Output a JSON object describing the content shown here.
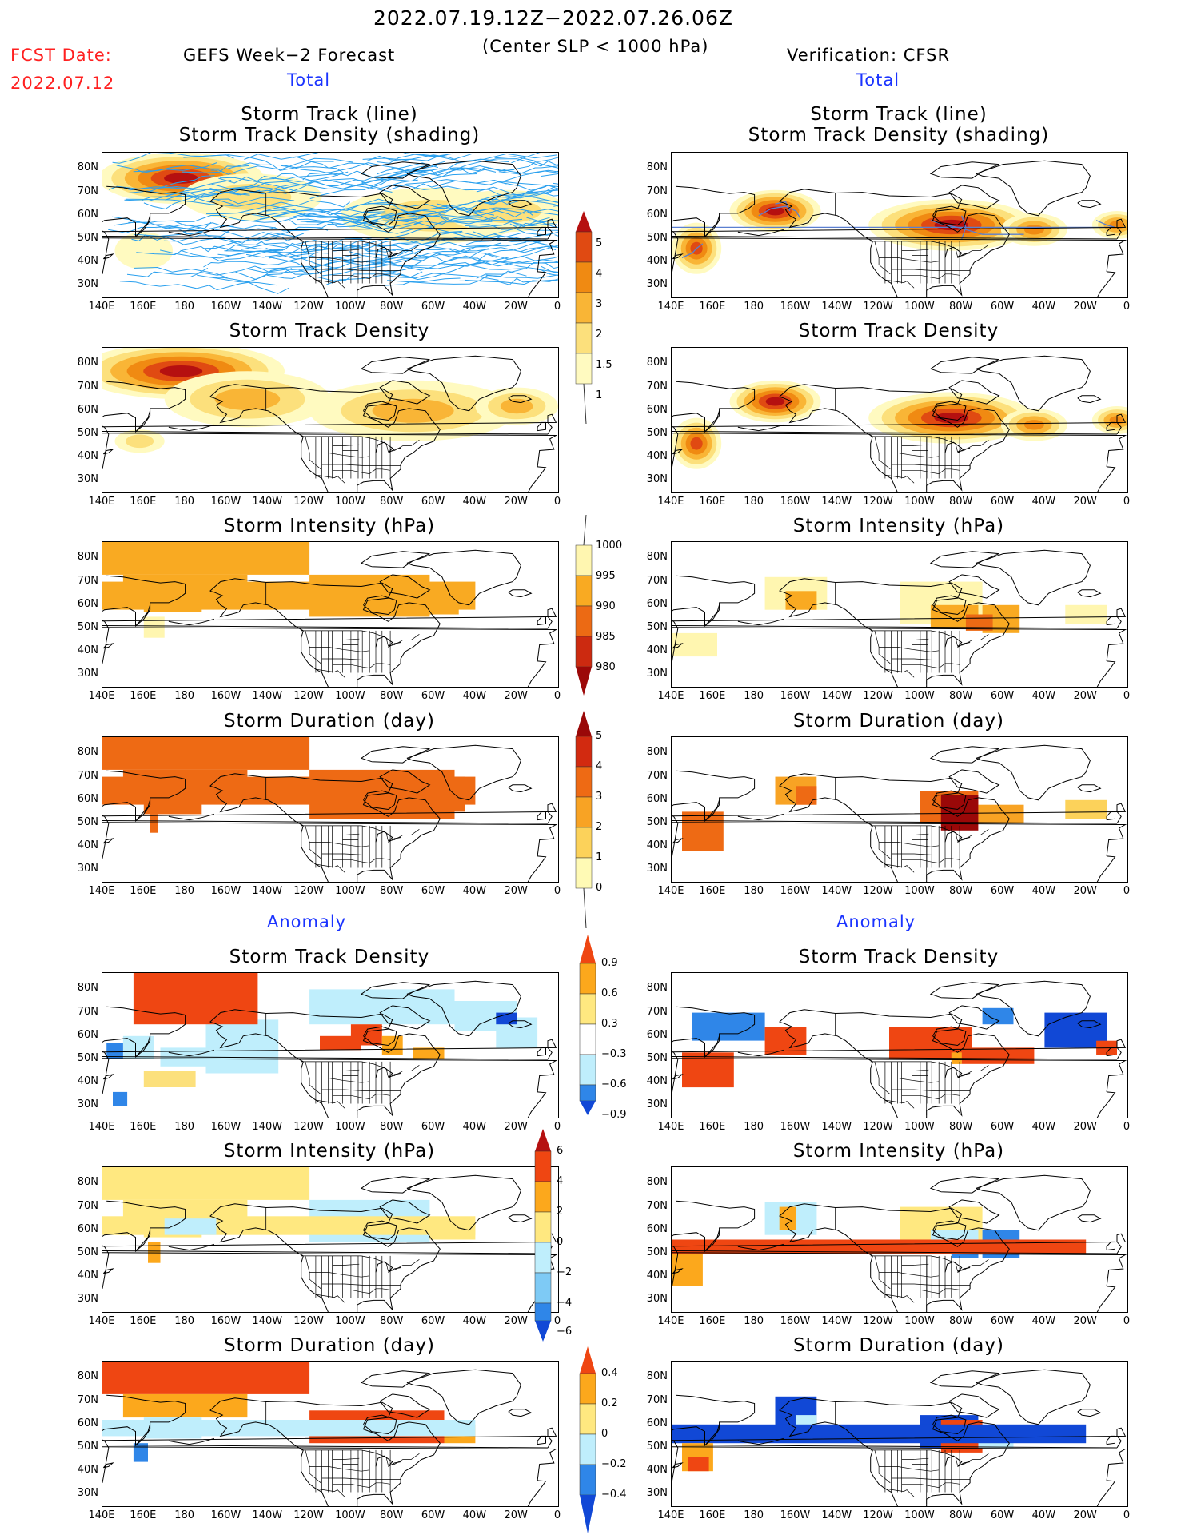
{
  "header": {
    "date_range": "2022.07.19.12Z−2022.07.26.06Z",
    "center_slp": "(Center SLP < 1000 hPa)",
    "fcst_label": "FCST Date:",
    "fcst_date": "2022.07.12",
    "left_title": "GEFS Week−2 Forecast",
    "right_title": "Verification: CFSR",
    "total_label": "Total",
    "anomaly_label": "Anomaly"
  },
  "panel_titles": {
    "track_line": "Storm Track (line)",
    "track_density_shading": "Storm Track Density (shading)",
    "track_density": "Storm Track Density",
    "intensity": "Storm Intensity (hPa)",
    "duration": "Storm Duration (day)"
  },
  "axes": {
    "lat_labels": [
      "80N",
      "70N",
      "60N",
      "50N",
      "40N",
      "30N"
    ],
    "lon_labels": [
      "140E",
      "160E",
      "180",
      "160W",
      "140W",
      "120W",
      "100W",
      "80W",
      "60W",
      "40W",
      "20W",
      "0"
    ]
  },
  "colorbars": {
    "density": [
      "5",
      "4",
      "3",
      "2",
      "1.5",
      "1"
    ],
    "intensity": [
      "1000",
      "995",
      "990",
      "985",
      "980"
    ],
    "duration": [
      "5",
      "4",
      "3",
      "2",
      "1",
      "0"
    ],
    "density_anom": [
      "0.9",
      "0.6",
      "0.3",
      "−0.3",
      "−0.6",
      "−0.9"
    ],
    "intensity_anom": [
      "6",
      "4",
      "2",
      "0",
      "−2",
      "−4",
      "−6"
    ],
    "duration_anom": [
      "0.4",
      "0.2",
      "0",
      "−0.2",
      "−0.4"
    ]
  },
  "colors": {
    "density": [
      "#fffac0",
      "#fce07c",
      "#f9b536",
      "#f08a12",
      "#e04a12",
      "#b51010"
    ],
    "intensity": [
      "#fff6b0",
      "#f9aa22",
      "#ec6a14",
      "#cc2a10",
      "#9c0808"
    ],
    "duration": [
      "#fffab5",
      "#fcd25a",
      "#f8a324",
      "#ee6a14",
      "#d22a10",
      "#9a0808"
    ],
    "anom_pos": [
      "#ffe880",
      "#fca81c",
      "#ef4612"
    ],
    "anom_neg": [
      "#bfeefc",
      "#7ecaf5",
      "#2f86e8",
      "#1148d6"
    ],
    "track_line": "#2aa0ee",
    "verif_track": "#5a7fd0"
  }
}
